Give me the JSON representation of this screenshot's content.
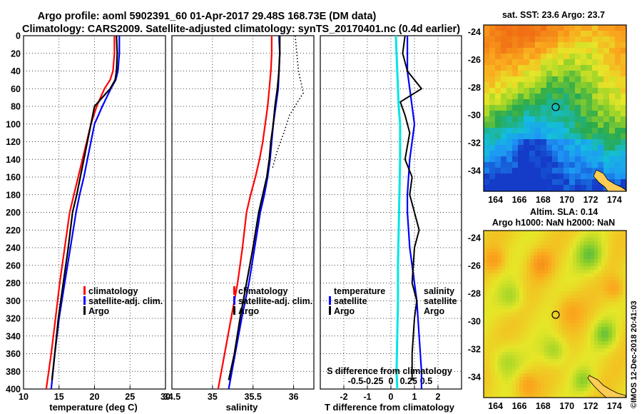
{
  "header": {
    "title_line1": "Argo profile: aoml 5902391_60 01-Apr-2017 29.48S 168.73E (DM data)",
    "title_line2": "Climatology: CARS2009. Satellite-adjusted climatology: synTS_20170401.nc (0.4d earlier)"
  },
  "map_sst": {
    "title": "sat. SST: 23.6 Argo: 23.7",
    "lat_ticks": [
      "-24",
      "-26",
      "-28",
      "-30",
      "-32",
      "-34"
    ],
    "lon_ticks": [
      "164",
      "166",
      "168",
      "170",
      "172",
      "174"
    ]
  },
  "map_sla": {
    "title_line1": "Altim. SLA: 0.14",
    "title_line2": "Argo h1000: NaN h2000: NaN",
    "lat_ticks": [
      "-24",
      "-26",
      "-28",
      "-30",
      "-32",
      "-34"
    ],
    "lon_ticks": [
      "164",
      "166",
      "168",
      "170",
      "172",
      "174"
    ]
  },
  "credit": "©IMOS 12-Dec-2018 20:41:03",
  "colors": {
    "climatology": "#ff0000",
    "satellite": "#0000ff",
    "argo": "#000000",
    "salinity_diff": "#00e5e5"
  },
  "chart_data": [
    {
      "type": "line",
      "title": "",
      "xlabel": "temperature (deg C)",
      "ylabel": "",
      "xlim": [
        10,
        30
      ],
      "ylim": [
        400,
        0
      ],
      "x_ticks": [
        "10",
        "15",
        "20",
        "25",
        "30"
      ],
      "y_ticks": [
        "0",
        "20",
        "40",
        "60",
        "80",
        "100",
        "120",
        "140",
        "160",
        "180",
        "200",
        "220",
        "240",
        "260",
        "280",
        "300",
        "320",
        "340",
        "360",
        "380",
        "400"
      ],
      "legend": [
        "climatology",
        "satellite-adj. clim.",
        "Argo"
      ],
      "series": [
        {
          "name": "climatology",
          "x": [
            22.8,
            22.8,
            22.6,
            22.2,
            21.4,
            20.3,
            19.5,
            18.9,
            18.3,
            17.7,
            17.1,
            16.5,
            15.8,
            15.1,
            14.5,
            13.9,
            13.2
          ],
          "depth": [
            0,
            20,
            40,
            50,
            60,
            80,
            100,
            120,
            140,
            160,
            180,
            200,
            240,
            280,
            320,
            360,
            400
          ]
        },
        {
          "name": "satellite-adj. clim.",
          "x": [
            23.5,
            23.5,
            23.3,
            23.0,
            22.3,
            21.1,
            20.0,
            19.5,
            19.0,
            18.5,
            17.9,
            17.4,
            16.6,
            15.8,
            15.0,
            14.4,
            13.9
          ],
          "depth": [
            0,
            20,
            40,
            50,
            60,
            80,
            100,
            120,
            140,
            160,
            180,
            200,
            240,
            280,
            320,
            360,
            400
          ]
        },
        {
          "name": "Argo",
          "x": [
            23.1,
            23.2,
            23.1,
            22.9,
            22.2,
            20.0,
            19.5,
            19.0,
            18.5,
            18.0,
            17.5,
            16.9,
            16.3,
            15.6,
            14.9,
            14.4,
            14.0
          ],
          "depth": [
            0,
            20,
            40,
            50,
            60,
            80,
            100,
            120,
            140,
            160,
            180,
            200,
            240,
            280,
            320,
            360,
            390
          ]
        }
      ]
    },
    {
      "type": "line",
      "title": "",
      "xlabel": "salinity",
      "ylabel": "",
      "xlim": [
        34.5,
        36.25
      ],
      "ylim": [
        400,
        0
      ],
      "x_ticks": [
        "34.5",
        "35",
        "35.5",
        "36"
      ],
      "legend": [
        "climatology",
        "satellite-adj. clim.",
        "Argo"
      ],
      "series": [
        {
          "name": "climatology",
          "x": [
            35.73,
            35.73,
            35.72,
            35.7,
            35.68,
            35.65,
            35.62,
            35.58,
            35.53,
            35.47,
            35.42,
            35.37,
            35.31,
            35.23,
            35.15,
            35.07
          ],
          "depth": [
            0,
            20,
            40,
            60,
            80,
            100,
            120,
            140,
            160,
            180,
            200,
            240,
            280,
            320,
            360,
            400
          ]
        },
        {
          "name": "satellite-adj. clim.",
          "x": [
            35.82,
            35.83,
            35.82,
            35.81,
            35.78,
            35.75,
            35.73,
            35.71,
            35.68,
            35.64,
            35.59,
            35.52,
            35.45,
            35.36,
            35.28,
            35.2
          ],
          "depth": [
            0,
            20,
            40,
            60,
            80,
            100,
            120,
            140,
            160,
            180,
            200,
            240,
            280,
            320,
            360,
            400
          ]
        },
        {
          "name": "Argo",
          "x": [
            35.83,
            35.83,
            35.82,
            35.8,
            35.77,
            35.75,
            35.72,
            35.7,
            35.67,
            35.62,
            35.57,
            35.5,
            35.42,
            35.34,
            35.27,
            35.2
          ],
          "depth": [
            0,
            20,
            40,
            60,
            80,
            100,
            120,
            140,
            160,
            180,
            200,
            240,
            280,
            320,
            360,
            390
          ]
        },
        {
          "name": "Argo offset profile",
          "x": [
            36.02,
            36.04,
            36.06,
            36.12,
            36.05,
            35.95,
            35.88,
            35.8,
            35.74
          ],
          "depth": [
            0,
            20,
            40,
            65,
            75,
            90,
            110,
            130,
            150
          ]
        }
      ]
    },
    {
      "type": "line",
      "title": "",
      "xlabel": "T difference from climatology",
      "x2label": "S difference from climatology",
      "ylabel": "",
      "xlim": [
        -3,
        3
      ],
      "ylim": [
        400,
        0
      ],
      "x_ticks": [
        "-2",
        "-1",
        "0",
        "1",
        "2"
      ],
      "x2_ticks": [
        "-0.5",
        "-0.25",
        "0",
        "0.25",
        "0.5"
      ],
      "legend": [
        "temperature",
        "satellite",
        "Argo",
        "salinity",
        "satellite",
        "Argo"
      ],
      "series": [
        {
          "name": "temperature satellite",
          "x": [
            0.7,
            0.7,
            0.7,
            0.8,
            0.9,
            1.0,
            0.8,
            0.7,
            0.7,
            0.8,
            0.9,
            1.1,
            1.2,
            1.3,
            1.3
          ],
          "depth": [
            0,
            20,
            40,
            60,
            80,
            100,
            140,
            180,
            200,
            240,
            260,
            300,
            340,
            380,
            400
          ]
        },
        {
          "name": "temperature Argo",
          "x": [
            0.6,
            0.5,
            0.7,
            1.3,
            0.4,
            0.6,
            0.8,
            0.6,
            0.9,
            0.8,
            1.0,
            1.2,
            1.0,
            0.9,
            1.1,
            1.0,
            0.9,
            0.9
          ],
          "depth": [
            0,
            20,
            40,
            60,
            75,
            90,
            110,
            140,
            160,
            180,
            200,
            220,
            240,
            280,
            300,
            320,
            360,
            390
          ]
        },
        {
          "name": "salinity satellite",
          "x": [
            0.07,
            0.08,
            0.09,
            0.1,
            0.11,
            0.13,
            0.13,
            0.12,
            0.11,
            0.1,
            0.1,
            0.09,
            0.08,
            0.09
          ],
          "depth": [
            0,
            20,
            40,
            60,
            80,
            100,
            140,
            180,
            220,
            260,
            300,
            340,
            380,
            400
          ]
        },
        {
          "name": "salinity Argo",
          "x": [
            -0.01
          ],
          "depth": [
            0
          ]
        }
      ]
    }
  ]
}
